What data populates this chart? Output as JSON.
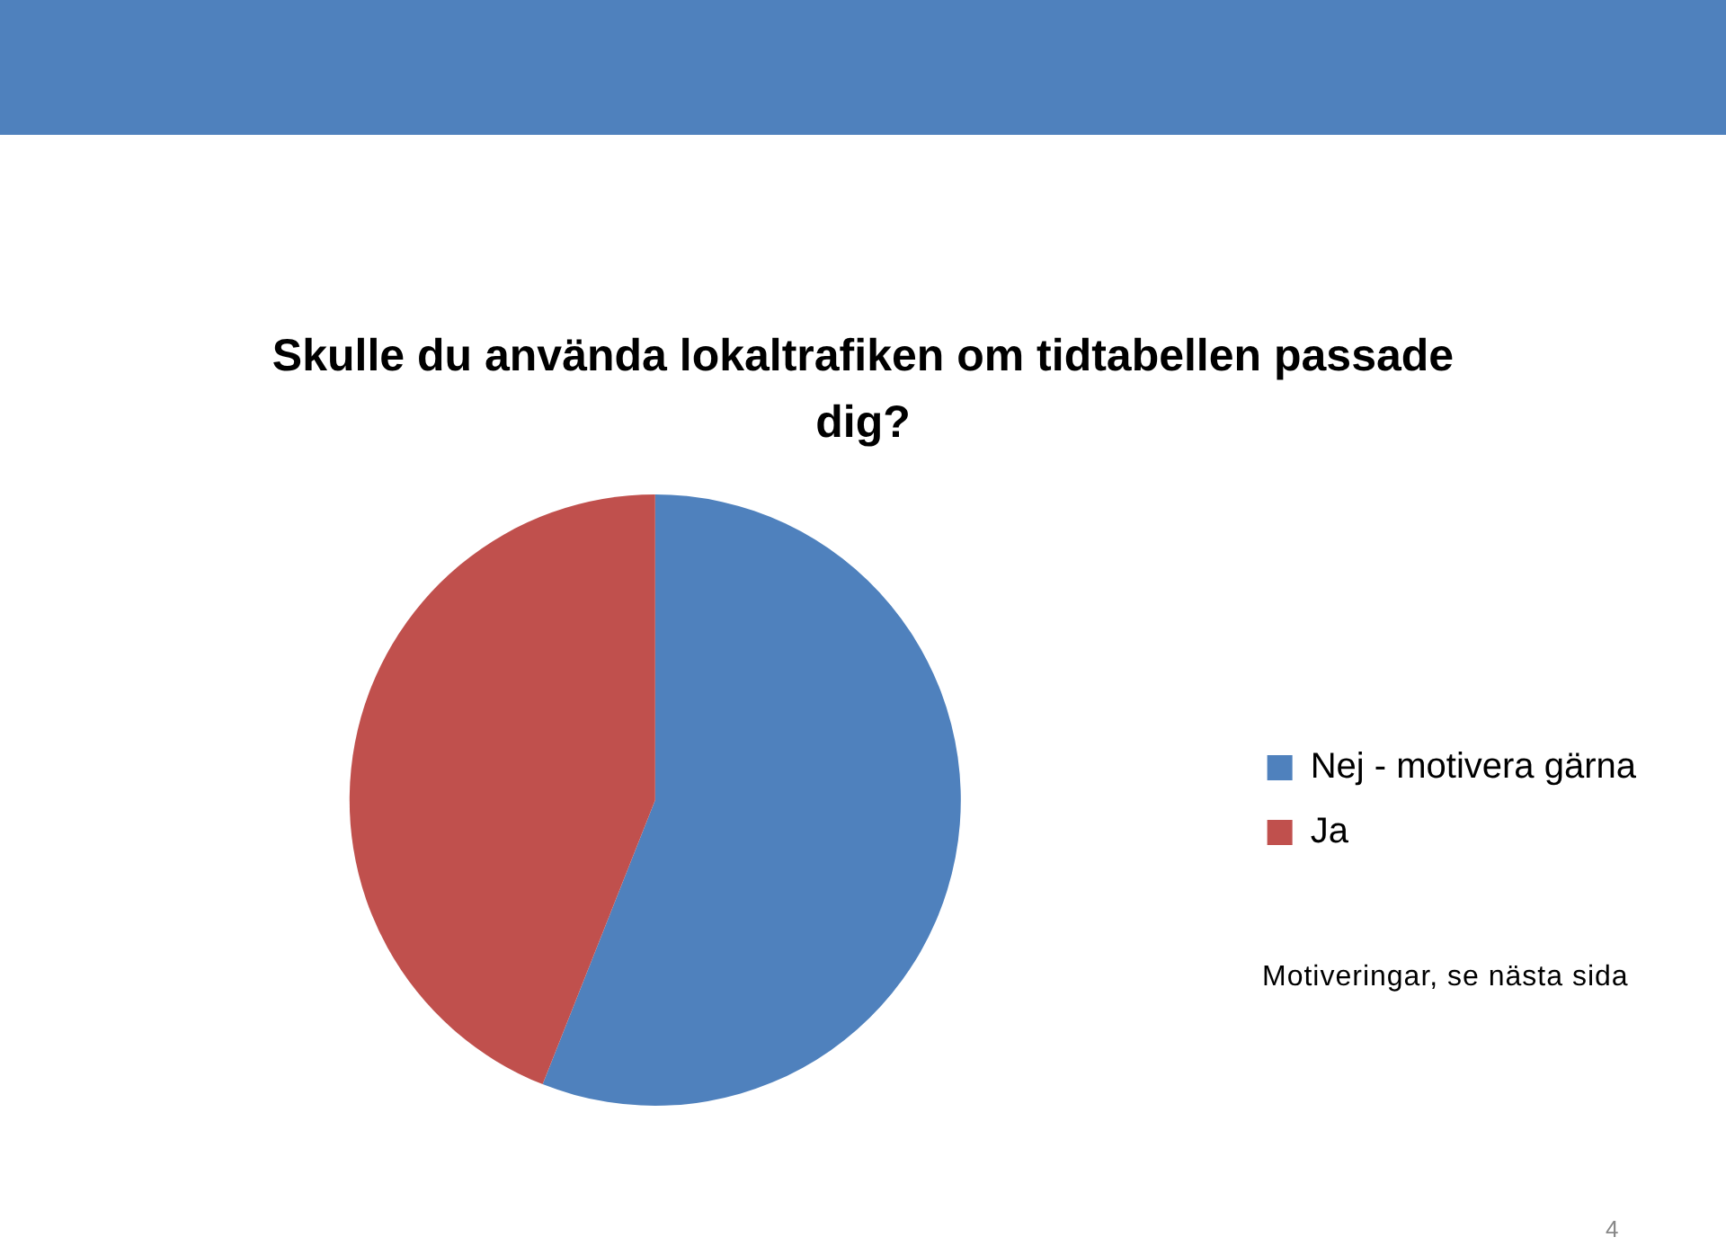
{
  "chart_data": {
    "type": "pie",
    "title": "Skulle du använda lokaltrafiken om tidtabellen passade dig?",
    "categories": [
      "Nej - motivera gärna",
      "Ja"
    ],
    "values": [
      56,
      44
    ],
    "colors": [
      "#4f81bd",
      "#c0504d"
    ],
    "legend": "right",
    "annotations": [
      "Motiveringar, se nästa sida",
      "4"
    ]
  }
}
